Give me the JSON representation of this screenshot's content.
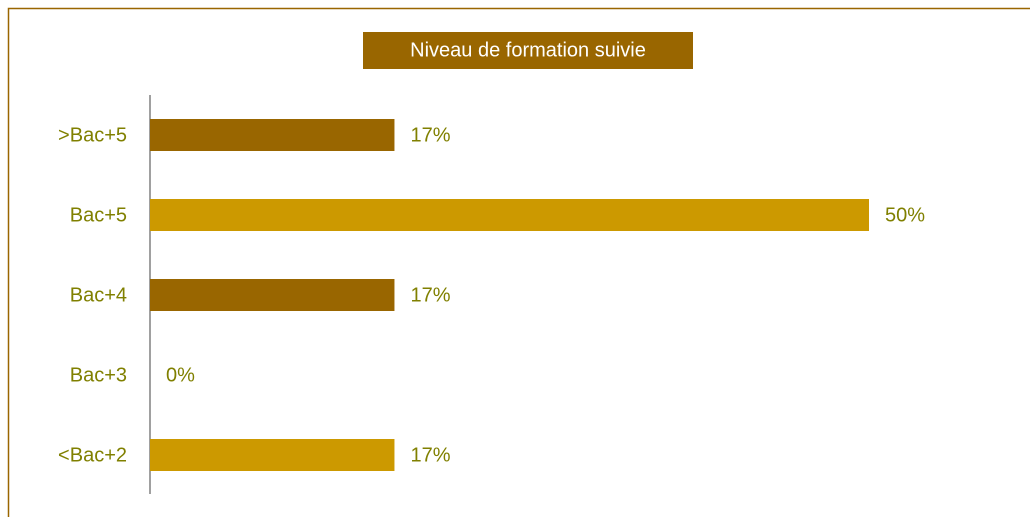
{
  "chart_data": {
    "type": "bar",
    "orientation": "horizontal",
    "title": "Niveau de formation suivie",
    "categories": [
      ">Bac+5",
      "Bac+5",
      "Bac+4",
      "Bac+3",
      "<Bac+2"
    ],
    "values": [
      17,
      50,
      17,
      0,
      17
    ],
    "value_labels": [
      "17%",
      "50%",
      "17%",
      "0%",
      "17%"
    ],
    "colors": [
      "#996600",
      "#cc9900",
      "#996600",
      "#cc9900",
      "#cc9900"
    ]
  }
}
